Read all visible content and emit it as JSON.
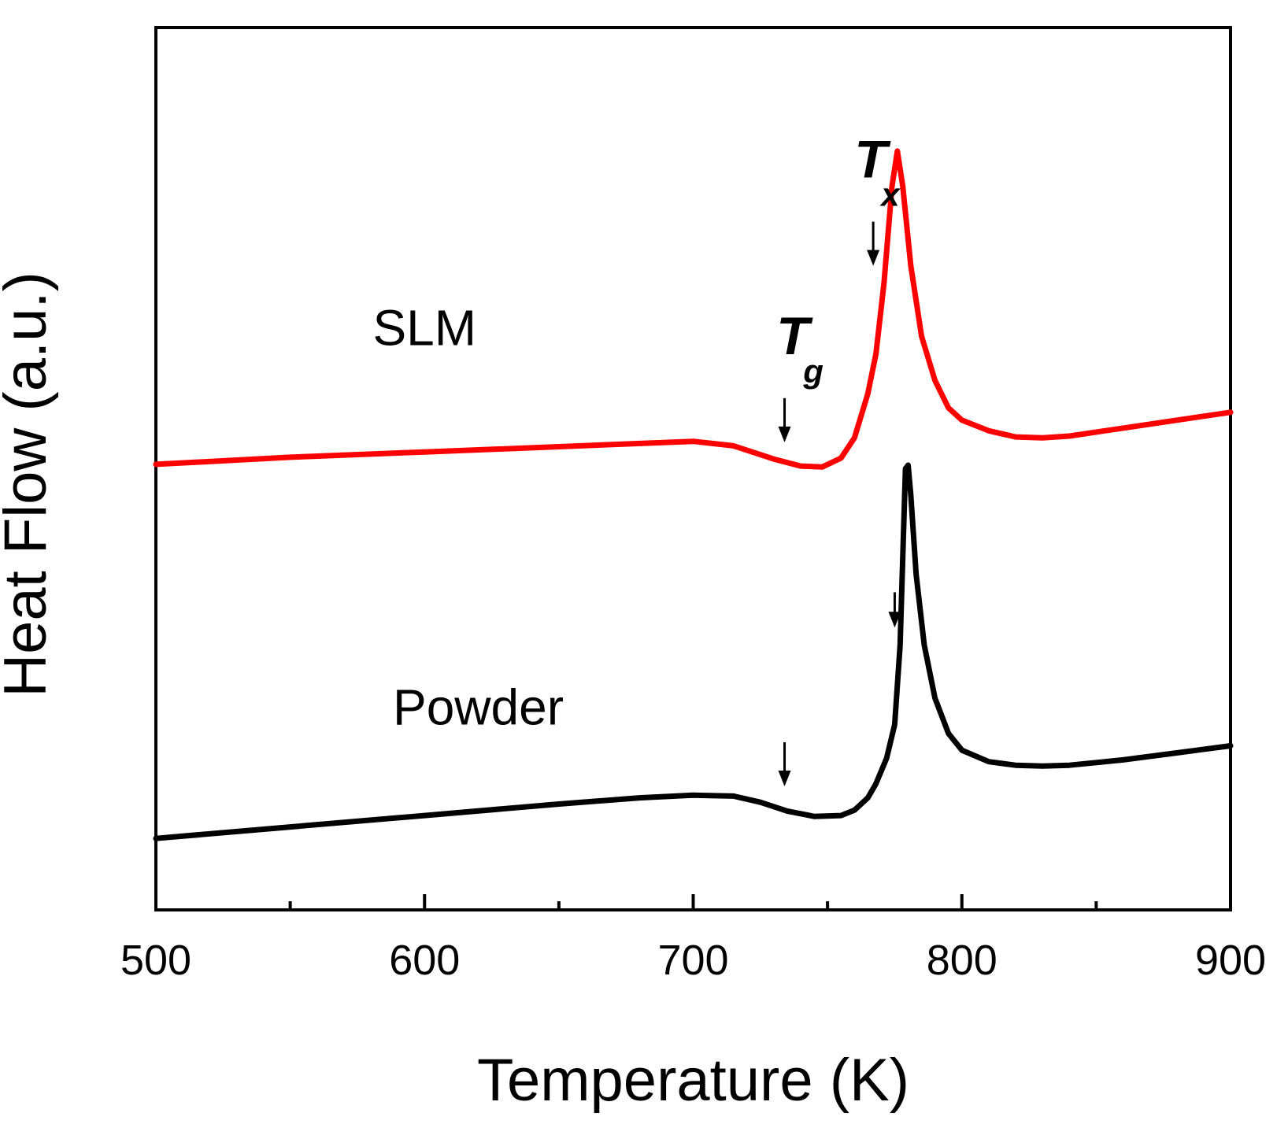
{
  "chart_data": {
    "type": "line",
    "title": "",
    "xlabel": "Temperature (K)",
    "ylabel": "Heat Flow (a.u.)",
    "xlim": [
      500,
      900
    ],
    "ylim": [
      0,
      100
    ],
    "x_ticks": [
      500,
      600,
      700,
      800,
      900
    ],
    "x_minor_ticks": [
      550,
      650,
      750,
      850
    ],
    "y_ticks": [],
    "grid": false,
    "series": [
      {
        "name": "SLM",
        "color": "#ff0000",
        "points": [
          [
            500,
            50.5
          ],
          [
            550,
            51.3
          ],
          [
            600,
            51.9
          ],
          [
            650,
            52.5
          ],
          [
            700,
            53.1
          ],
          [
            715,
            52.6
          ],
          [
            730,
            51.1
          ],
          [
            740,
            50.3
          ],
          [
            748,
            50.2
          ],
          [
            755,
            51.2
          ],
          [
            760,
            53.5
          ],
          [
            765,
            58.5
          ],
          [
            768,
            63.0
          ],
          [
            771,
            71.0
          ],
          [
            774,
            82.0
          ],
          [
            776,
            86.0
          ],
          [
            778,
            82.0
          ],
          [
            781,
            73.0
          ],
          [
            785,
            65.0
          ],
          [
            790,
            60.0
          ],
          [
            795,
            56.9
          ],
          [
            800,
            55.5
          ],
          [
            810,
            54.3
          ],
          [
            820,
            53.6
          ],
          [
            830,
            53.5
          ],
          [
            840,
            53.7
          ],
          [
            860,
            54.6
          ],
          [
            880,
            55.5
          ],
          [
            900,
            56.4
          ]
        ]
      },
      {
        "name": "Powder",
        "color": "#000000",
        "points": [
          [
            500,
            8.1
          ],
          [
            550,
            9.4
          ],
          [
            600,
            10.7
          ],
          [
            650,
            12.0
          ],
          [
            680,
            12.7
          ],
          [
            700,
            13.0
          ],
          [
            715,
            12.9
          ],
          [
            725,
            12.2
          ],
          [
            735,
            11.2
          ],
          [
            745,
            10.6
          ],
          [
            755,
            10.7
          ],
          [
            760,
            11.3
          ],
          [
            765,
            12.7
          ],
          [
            768,
            14.3
          ],
          [
            772,
            17.2
          ],
          [
            775,
            21.0
          ],
          [
            777,
            30.0
          ],
          [
            778,
            40.0
          ],
          [
            779,
            50.0
          ],
          [
            780,
            50.4
          ],
          [
            781,
            47.0
          ],
          [
            783,
            38.0
          ],
          [
            786,
            30.0
          ],
          [
            790,
            24.0
          ],
          [
            795,
            20.0
          ],
          [
            800,
            18.1
          ],
          [
            810,
            16.8
          ],
          [
            820,
            16.4
          ],
          [
            830,
            16.3
          ],
          [
            840,
            16.4
          ],
          [
            860,
            17.0
          ],
          [
            880,
            17.8
          ],
          [
            900,
            18.6
          ]
        ]
      }
    ],
    "series_labels": [
      {
        "text": "SLM",
        "x": 600,
        "y": 64
      },
      {
        "text": "Powder",
        "x": 620,
        "y": 21
      }
    ],
    "annotations": [
      {
        "type": "label",
        "text": "T",
        "sub": "g",
        "x": 731,
        "y": 63
      },
      {
        "type": "label",
        "text": "T",
        "sub": "x",
        "x": 760,
        "y": 83
      },
      {
        "type": "arrow",
        "series": "SLM",
        "x": 734,
        "y_top": 58,
        "y_bottom": 53
      },
      {
        "type": "arrow",
        "series": "SLM",
        "x": 767,
        "y_top": 78,
        "y_bottom": 73
      },
      {
        "type": "arrow",
        "series": "Powder",
        "x": 734,
        "y_top": 19,
        "y_bottom": 14
      },
      {
        "type": "arrow",
        "series": "Powder",
        "x": 775,
        "y_top": 36,
        "y_bottom": 32
      }
    ]
  }
}
